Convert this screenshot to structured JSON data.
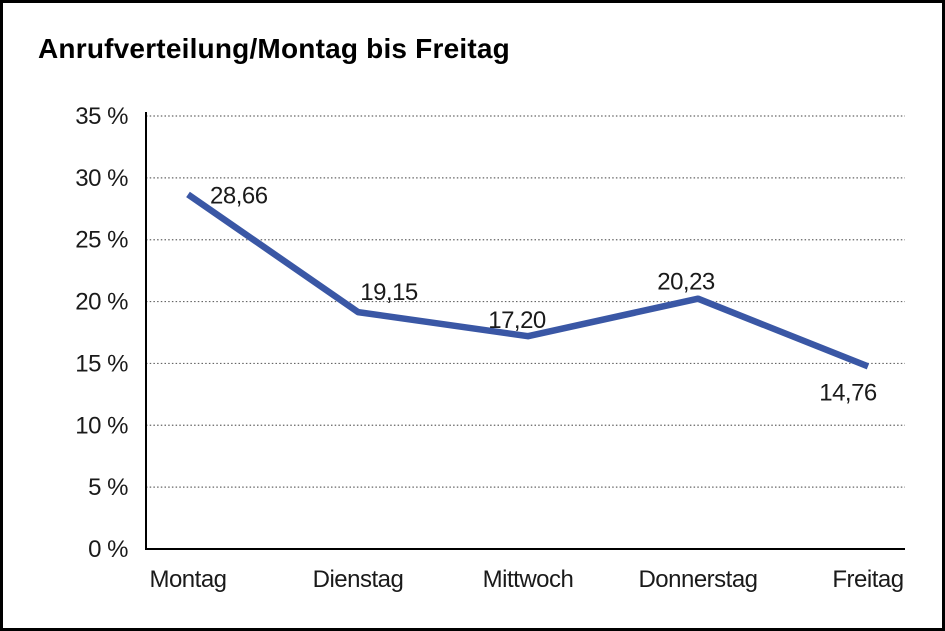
{
  "chart_data": {
    "type": "line",
    "title": "Anrufverteilung/Montag bis Freitag",
    "categories": [
      "Montag",
      "Dienstag",
      "Mittwoch",
      "Donnerstag",
      "Freitag"
    ],
    "series": [
      {
        "name": "Anrufverteilung",
        "values": [
          28.66,
          19.15,
          17.2,
          20.23,
          14.76
        ],
        "value_labels": [
          "28,66",
          "19,15",
          "17,20",
          "20,23",
          "14,76"
        ]
      }
    ],
    "xlabel": "",
    "ylabel": "",
    "ylim": [
      0,
      35
    ],
    "y_tick_step": 5,
    "y_tick_labels": [
      "0 %",
      "5 %",
      "10 %",
      "15 %",
      "20 %",
      "25 %",
      "30 %",
      "35 %"
    ],
    "grid": "horizontal-dotted",
    "legend": "none",
    "line_color": "#3A57A5",
    "axis_color": "#000000",
    "gridline_color": "#666666",
    "text_color": "#1a1a1a"
  }
}
